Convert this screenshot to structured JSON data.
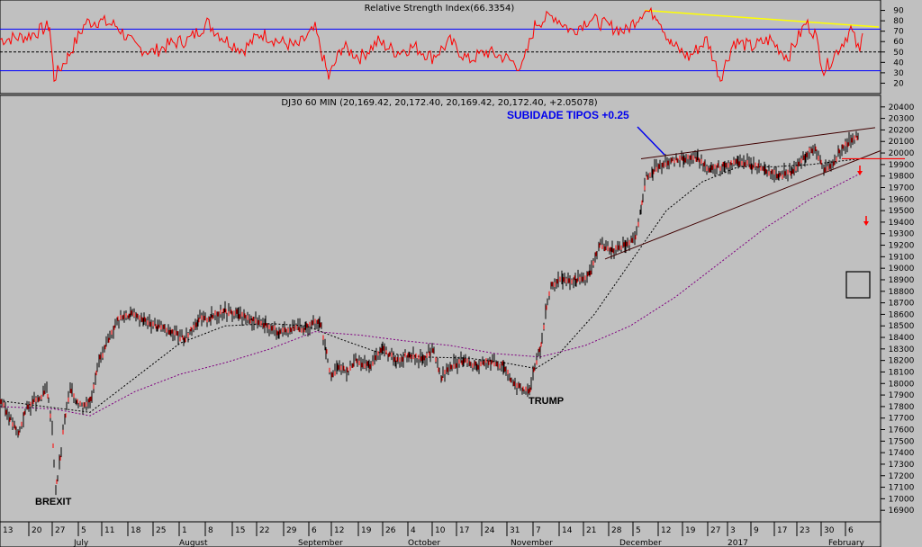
{
  "chart_data": [
    {
      "type": "line",
      "title": "Relative Strength Index(66.3354)",
      "ylim": [
        10,
        100
      ],
      "yticks": [
        20,
        30,
        40,
        50,
        60,
        70,
        80,
        90
      ],
      "bands": {
        "upper": 72,
        "middle": 50,
        "lower": 32
      },
      "trendline": {
        "from_y": 90,
        "to_y": 74
      },
      "path": [
        [
          0,
          62
        ],
        [
          30,
          65
        ],
        [
          55,
          75
        ],
        [
          60,
          25
        ],
        [
          75,
          45
        ],
        [
          95,
          78
        ],
        [
          110,
          80
        ],
        [
          130,
          75
        ],
        [
          150,
          55
        ],
        [
          170,
          50
        ],
        [
          190,
          58
        ],
        [
          210,
          62
        ],
        [
          230,
          78
        ],
        [
          250,
          62
        ],
        [
          270,
          52
        ],
        [
          290,
          68
        ],
        [
          310,
          60
        ],
        [
          330,
          55
        ],
        [
          350,
          72
        ],
        [
          365,
          25
        ],
        [
          380,
          55
        ],
        [
          400,
          45
        ],
        [
          420,
          60
        ],
        [
          440,
          50
        ],
        [
          460,
          55
        ],
        [
          480,
          45
        ],
        [
          500,
          60
        ],
        [
          520,
          42
        ],
        [
          540,
          50
        ],
        [
          560,
          45
        ],
        [
          580,
          35
        ],
        [
          595,
          78
        ],
        [
          615,
          85
        ],
        [
          635,
          70
        ],
        [
          655,
          82
        ],
        [
          675,
          75
        ],
        [
          695,
          70
        ],
        [
          705,
          80
        ],
        [
          715,
          90
        ],
        [
          730,
          86
        ],
        [
          745,
          58
        ],
        [
          765,
          45
        ],
        [
          785,
          62
        ],
        [
          800,
          25
        ],
        [
          815,
          60
        ],
        [
          835,
          55
        ],
        [
          855,
          62
        ],
        [
          875,
          45
        ],
        [
          895,
          78
        ],
        [
          905,
          68
        ],
        [
          915,
          32
        ],
        [
          925,
          45
        ],
        [
          935,
          58
        ],
        [
          945,
          72
        ],
        [
          955,
          48
        ],
        [
          958,
          68
        ]
      ]
    },
    {
      "type": "line",
      "title": "DJ30 60 MIN (20,169.42, 20,172.40, 20,169.42, 20,172.40, +2.05078)",
      "ylim": [
        16800,
        20500
      ],
      "yticks": [
        16900,
        17000,
        17100,
        17200,
        17300,
        17400,
        17500,
        17600,
        17700,
        17800,
        17900,
        18000,
        18100,
        18200,
        18300,
        18400,
        18500,
        18600,
        18700,
        18800,
        18900,
        19000,
        19100,
        19200,
        19300,
        19400,
        19500,
        19600,
        19700,
        19800,
        19900,
        20000,
        20100,
        20200,
        20300,
        20400
      ],
      "price": [
        [
          0,
          17850
        ],
        [
          10,
          17720
        ],
        [
          20,
          17560
        ],
        [
          30,
          17800
        ],
        [
          42,
          17850
        ],
        [
          52,
          17950
        ],
        [
          58,
          17600
        ],
        [
          62,
          17080
        ],
        [
          66,
          17300
        ],
        [
          72,
          17700
        ],
        [
          78,
          17950
        ],
        [
          85,
          17850
        ],
        [
          92,
          17800
        ],
        [
          100,
          17850
        ],
        [
          110,
          18200
        ],
        [
          120,
          18350
        ],
        [
          130,
          18550
        ],
        [
          145,
          18600
        ],
        [
          160,
          18550
        ],
        [
          175,
          18500
        ],
        [
          190,
          18450
        ],
        [
          205,
          18380
        ],
        [
          220,
          18550
        ],
        [
          235,
          18580
        ],
        [
          250,
          18630
        ],
        [
          265,
          18600
        ],
        [
          280,
          18550
        ],
        [
          295,
          18500
        ],
        [
          310,
          18450
        ],
        [
          325,
          18480
        ],
        [
          340,
          18480
        ],
        [
          355,
          18550
        ],
        [
          362,
          18300
        ],
        [
          368,
          18050
        ],
        [
          375,
          18150
        ],
        [
          385,
          18100
        ],
        [
          395,
          18200
        ],
        [
          410,
          18150
        ],
        [
          425,
          18300
        ],
        [
          440,
          18200
        ],
        [
          455,
          18250
        ],
        [
          470,
          18200
        ],
        [
          480,
          18300
        ],
        [
          490,
          18050
        ],
        [
          500,
          18150
        ],
        [
          515,
          18200
        ],
        [
          530,
          18150
        ],
        [
          545,
          18200
        ],
        [
          560,
          18150
        ],
        [
          570,
          18000
        ],
        [
          580,
          17950
        ],
        [
          588,
          17920
        ],
        [
          592,
          18100
        ],
        [
          600,
          18300
        ],
        [
          606,
          18600
        ],
        [
          612,
          18850
        ],
        [
          625,
          18900
        ],
        [
          640,
          18900
        ],
        [
          655,
          18950
        ],
        [
          665,
          19200
        ],
        [
          680,
          19150
        ],
        [
          695,
          19200
        ],
        [
          705,
          19250
        ],
        [
          712,
          19500
        ],
        [
          718,
          19800
        ],
        [
          725,
          19850
        ],
        [
          735,
          19900
        ],
        [
          745,
          19920
        ],
        [
          760,
          19950
        ],
        [
          775,
          19950
        ],
        [
          790,
          19850
        ],
        [
          805,
          19900
        ],
        [
          820,
          19920
        ],
        [
          835,
          19900
        ],
        [
          850,
          19850
        ],
        [
          865,
          19800
        ],
        [
          880,
          19850
        ],
        [
          895,
          19980
        ],
        [
          905,
          20050
        ],
        [
          915,
          19850
        ],
        [
          925,
          19900
        ],
        [
          935,
          20050
        ],
        [
          945,
          20100
        ],
        [
          955,
          20170
        ]
      ],
      "ma_short": [
        [
          0,
          17850
        ],
        [
          50,
          17800
        ],
        [
          100,
          17750
        ],
        [
          150,
          18050
        ],
        [
          200,
          18350
        ],
        [
          250,
          18500
        ],
        [
          300,
          18520
        ],
        [
          340,
          18500
        ],
        [
          380,
          18380
        ],
        [
          420,
          18270
        ],
        [
          470,
          18230
        ],
        [
          520,
          18220
        ],
        [
          560,
          18180
        ],
        [
          595,
          18130
        ],
        [
          620,
          18250
        ],
        [
          660,
          18600
        ],
        [
          700,
          19050
        ],
        [
          740,
          19500
        ],
        [
          780,
          19750
        ],
        [
          820,
          19880
        ],
        [
          860,
          19880
        ],
        [
          900,
          19900
        ],
        [
          955,
          19950
        ]
      ],
      "ma_long": [
        [
          0,
          17800
        ],
        [
          60,
          17780
        ],
        [
          100,
          17720
        ],
        [
          150,
          17930
        ],
        [
          200,
          18080
        ],
        [
          250,
          18180
        ],
        [
          300,
          18300
        ],
        [
          350,
          18450
        ],
        [
          400,
          18420
        ],
        [
          450,
          18370
        ],
        [
          500,
          18330
        ],
        [
          550,
          18260
        ],
        [
          600,
          18230
        ],
        [
          650,
          18330
        ],
        [
          700,
          18500
        ],
        [
          750,
          18750
        ],
        [
          800,
          19050
        ],
        [
          850,
          19350
        ],
        [
          900,
          19600
        ],
        [
          955,
          19820
        ]
      ],
      "resistance": {
        "from": [
          712,
          19950
        ],
        "to": [
          972,
          20220
        ]
      },
      "support": {
        "from": [
          672,
          19080
        ],
        "to": [
          978,
          20020
        ]
      },
      "stop_line": {
        "from": [
          935,
          19950
        ],
        "to": [
          1005,
          19950
        ]
      },
      "x_ticks_top": [
        "13",
        "20",
        "27",
        "5",
        "11",
        "18",
        "25",
        "1",
        "8",
        "15",
        "22",
        "29",
        "6",
        "12",
        "19",
        "26",
        "4",
        "10",
        "17",
        "24",
        "31",
        "7",
        "14",
        "21",
        "28",
        "5",
        "12",
        "19",
        "27",
        "3",
        "9",
        "17",
        "23",
        "30",
        "6"
      ],
      "x_ticks_months": [
        "July",
        "August",
        "September",
        "October",
        "November",
        "December",
        "2017",
        "February"
      ],
      "annotations": {
        "brexit": "BREXIT",
        "trump": "TRUMP",
        "rates": "SUBIDADE TIPOS +0.25"
      }
    }
  ]
}
